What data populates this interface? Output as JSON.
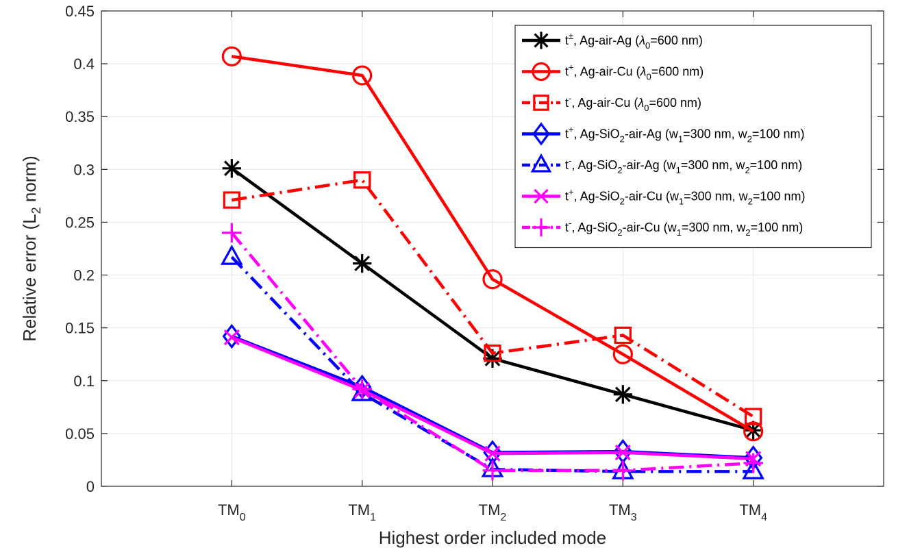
{
  "chart_data": {
    "type": "line",
    "title": "",
    "xlabel": "Highest order included mode",
    "ylabel": "Relative error (L2 norm)",
    "ylabel_parts": {
      "pre": "Relative error (L",
      "sub": "2",
      "post": " norm)"
    },
    "categories": [
      {
        "base": "TM",
        "sub": "0"
      },
      {
        "base": "TM",
        "sub": "1"
      },
      {
        "base": "TM",
        "sub": "2"
      },
      {
        "base": "TM",
        "sub": "3"
      },
      {
        "base": "TM",
        "sub": "4"
      }
    ],
    "xlim": [
      -1,
      5
    ],
    "ylim": [
      0,
      0.45
    ],
    "yticks": [
      "0",
      "0.05",
      "0.1",
      "0.15",
      "0.2",
      "0.25",
      "0.3",
      "0.35",
      "0.4",
      "0.45"
    ],
    "grid": true,
    "legend_position": "top-right",
    "series": [
      {
        "name": "t±, Ag-air-Ag (λ0=600 nm)",
        "legend_parts": [
          {
            "t": "t"
          },
          {
            "t": "±",
            "s": "sup"
          },
          {
            "t": ", Ag-air-Ag ("
          },
          {
            "t": "λ",
            "i": true
          },
          {
            "t": "0",
            "s": "sub"
          },
          {
            "t": "=600 nm)"
          }
        ],
        "color": "#000000",
        "dash": "solid",
        "marker": "asterisk",
        "values": [
          0.301,
          0.211,
          0.121,
          0.087,
          0.053
        ]
      },
      {
        "name": "t+, Ag-air-Cu (λ0=600 nm)",
        "legend_parts": [
          {
            "t": "t"
          },
          {
            "t": "+",
            "s": "sup"
          },
          {
            "t": ", Ag-air-Cu ("
          },
          {
            "t": "λ",
            "i": true
          },
          {
            "t": "0",
            "s": "sub"
          },
          {
            "t": "=600 nm)"
          }
        ],
        "color": "#ff0000",
        "dash": "solid",
        "marker": "circle",
        "values": [
          0.407,
          0.389,
          0.196,
          0.125,
          0.052
        ]
      },
      {
        "name": "t-, Ag-air-Cu (λ0=600 nm)",
        "legend_parts": [
          {
            "t": "t"
          },
          {
            "t": "-",
            "s": "sup"
          },
          {
            "t": ", Ag-air-Cu ("
          },
          {
            "t": "λ",
            "i": true
          },
          {
            "t": "0",
            "s": "sub"
          },
          {
            "t": "=600 nm)"
          }
        ],
        "color": "#ff0000",
        "dash": "dashdot",
        "marker": "square",
        "values": [
          0.271,
          0.29,
          0.126,
          0.143,
          0.066
        ]
      },
      {
        "name": "t+, Ag-SiO2-air-Ag (w1=300 nm, w2=100 nm)",
        "legend_parts": [
          {
            "t": "t"
          },
          {
            "t": "+",
            "s": "sup"
          },
          {
            "t": ", Ag-SiO"
          },
          {
            "t": "2",
            "s": "sub"
          },
          {
            "t": "-air-Ag (w"
          },
          {
            "t": "1",
            "s": "sub"
          },
          {
            "t": "=300 nm, w"
          },
          {
            "t": "2",
            "s": "sub"
          },
          {
            "t": "=100 nm)"
          }
        ],
        "color": "#0000ff",
        "dash": "solid",
        "marker": "diamond",
        "values": [
          0.142,
          0.094,
          0.032,
          0.033,
          0.027
        ]
      },
      {
        "name": "t-, Ag-SiO2-air-Ag (w1=300 nm, w2=100 nm)",
        "legend_parts": [
          {
            "t": "t"
          },
          {
            "t": "-",
            "s": "sup"
          },
          {
            "t": ", Ag-SiO"
          },
          {
            "t": "2",
            "s": "sub"
          },
          {
            "t": "-air-Ag (w"
          },
          {
            "t": "1",
            "s": "sub"
          },
          {
            "t": "=300 nm, w"
          },
          {
            "t": "2",
            "s": "sub"
          },
          {
            "t": "=100 nm)"
          }
        ],
        "color": "#0000ff",
        "dash": "dashdot",
        "marker": "triangle",
        "values": [
          0.217,
          0.088,
          0.016,
          0.014,
          0.014
        ]
      },
      {
        "name": "t+, Ag-SiO2-air-Cu (w1=300 nm, w2=100 nm)",
        "legend_parts": [
          {
            "t": "t"
          },
          {
            "t": "+",
            "s": "sup"
          },
          {
            "t": ", Ag-SiO"
          },
          {
            "t": "2",
            "s": "sub"
          },
          {
            "t": "-air-Cu (w"
          },
          {
            "t": "1",
            "s": "sub"
          },
          {
            "t": "=300 nm, w"
          },
          {
            "t": "2",
            "s": "sub"
          },
          {
            "t": "=100 nm)"
          }
        ],
        "color": "#ff00ff",
        "dash": "solid",
        "marker": "x",
        "values": [
          0.141,
          0.091,
          0.031,
          0.032,
          0.026
        ]
      },
      {
        "name": "t-, Ag-SiO2-air-Cu (w1=300 nm, w2=100 nm)",
        "legend_parts": [
          {
            "t": "t"
          },
          {
            "t": "-",
            "s": "sup"
          },
          {
            "t": ", Ag-SiO"
          },
          {
            "t": "2",
            "s": "sub"
          },
          {
            "t": "-air-Cu (w"
          },
          {
            "t": "1",
            "s": "sub"
          },
          {
            "t": "=300 nm, w"
          },
          {
            "t": "2",
            "s": "sub"
          },
          {
            "t": "=100 nm)"
          }
        ],
        "color": "#ff00ff",
        "dash": "dashdot",
        "marker": "plus",
        "values": [
          0.24,
          0.092,
          0.015,
          0.015,
          0.022
        ]
      }
    ]
  }
}
